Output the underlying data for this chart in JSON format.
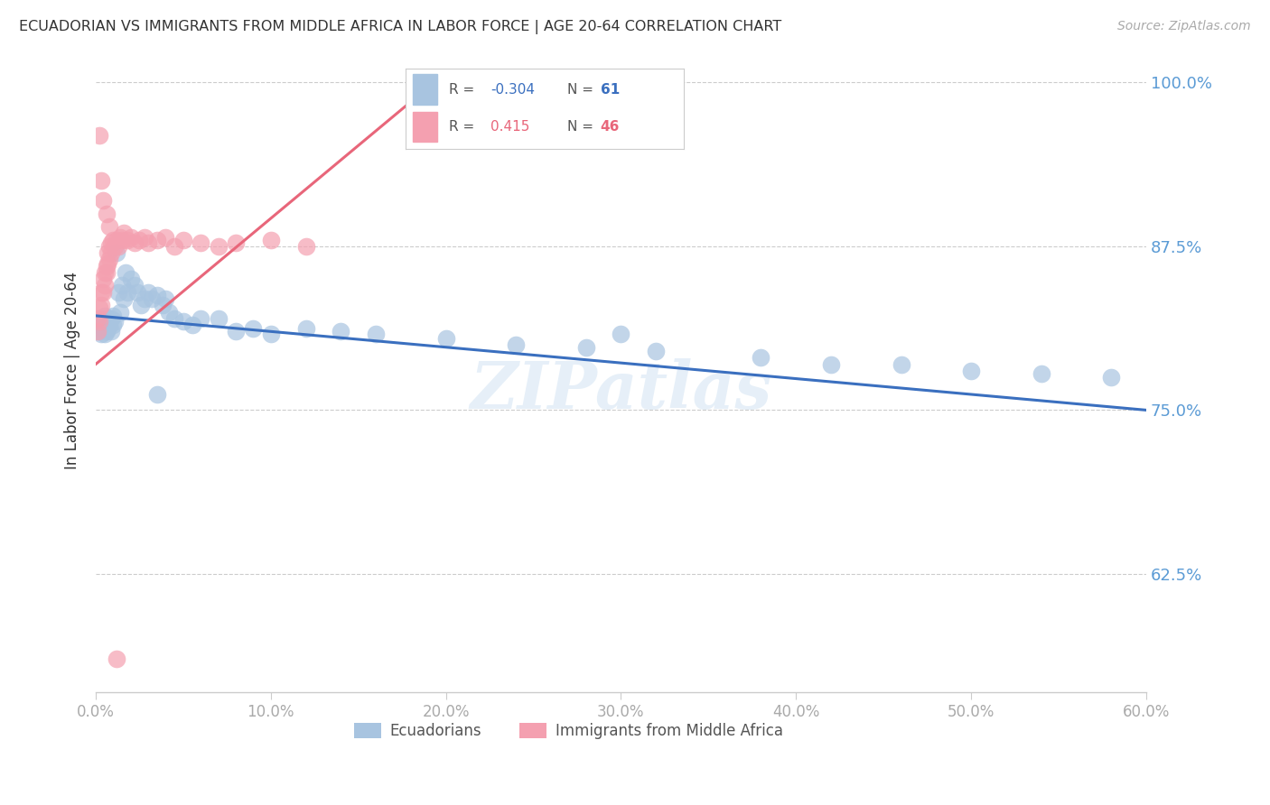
{
  "title": "ECUADORIAN VS IMMIGRANTS FROM MIDDLE AFRICA IN LABOR FORCE | AGE 20-64 CORRELATION CHART",
  "source": "Source: ZipAtlas.com",
  "ylabel": "In Labor Force | Age 20-64",
  "xlim": [
    0.0,
    0.6
  ],
  "ylim": [
    0.535,
    1.025
  ],
  "yticks": [
    0.625,
    0.75,
    0.875,
    1.0
  ],
  "ytick_labels": [
    "62.5%",
    "75.0%",
    "87.5%",
    "100.0%"
  ],
  "xticks": [
    0.0,
    0.1,
    0.2,
    0.3,
    0.4,
    0.5,
    0.6
  ],
  "xtick_labels": [
    "0.0%",
    "10.0%",
    "20.0%",
    "30.0%",
    "40.0%",
    "50.0%",
    "60.0%"
  ],
  "blue_R": -0.304,
  "blue_N": 61,
  "pink_R": 0.415,
  "pink_N": 46,
  "blue_color": "#a8c4e0",
  "pink_color": "#f4a0b0",
  "blue_line_color": "#3a6fbf",
  "pink_line_color": "#e8667a",
  "legend_label_blue": "Ecuadorians",
  "legend_label_pink": "Immigrants from Middle Africa",
  "watermark": "ZIPatlas",
  "blue_dots_x": [
    0.001,
    0.002,
    0.002,
    0.003,
    0.003,
    0.004,
    0.004,
    0.005,
    0.005,
    0.006,
    0.006,
    0.007,
    0.007,
    0.008,
    0.008,
    0.009,
    0.009,
    0.01,
    0.01,
    0.011,
    0.012,
    0.013,
    0.014,
    0.015,
    0.016,
    0.017,
    0.018,
    0.02,
    0.022,
    0.024,
    0.026,
    0.028,
    0.03,
    0.032,
    0.035,
    0.038,
    0.04,
    0.042,
    0.045,
    0.05,
    0.055,
    0.06,
    0.07,
    0.08,
    0.09,
    0.1,
    0.12,
    0.14,
    0.16,
    0.2,
    0.24,
    0.28,
    0.32,
    0.38,
    0.42,
    0.46,
    0.5,
    0.54,
    0.58,
    0.035,
    0.3
  ],
  "blue_dots_y": [
    0.82,
    0.815,
    0.81,
    0.82,
    0.808,
    0.818,
    0.812,
    0.822,
    0.808,
    0.815,
    0.81,
    0.82,
    0.812,
    0.818,
    0.815,
    0.82,
    0.81,
    0.822,
    0.815,
    0.818,
    0.87,
    0.84,
    0.825,
    0.845,
    0.835,
    0.855,
    0.84,
    0.85,
    0.845,
    0.84,
    0.83,
    0.835,
    0.84,
    0.835,
    0.838,
    0.83,
    0.835,
    0.825,
    0.82,
    0.818,
    0.815,
    0.82,
    0.82,
    0.81,
    0.812,
    0.808,
    0.812,
    0.81,
    0.808,
    0.805,
    0.8,
    0.798,
    0.795,
    0.79,
    0.785,
    0.785,
    0.78,
    0.778,
    0.775,
    0.762,
    0.808
  ],
  "pink_dots_x": [
    0.001,
    0.001,
    0.002,
    0.002,
    0.003,
    0.003,
    0.004,
    0.004,
    0.005,
    0.005,
    0.006,
    0.006,
    0.007,
    0.007,
    0.008,
    0.008,
    0.009,
    0.009,
    0.01,
    0.011,
    0.012,
    0.013,
    0.014,
    0.015,
    0.016,
    0.018,
    0.02,
    0.022,
    0.025,
    0.028,
    0.03,
    0.035,
    0.04,
    0.045,
    0.05,
    0.06,
    0.07,
    0.08,
    0.1,
    0.12,
    0.002,
    0.003,
    0.004,
    0.006,
    0.008,
    0.012
  ],
  "pink_dots_y": [
    0.81,
    0.82,
    0.818,
    0.828,
    0.83,
    0.84,
    0.84,
    0.85,
    0.845,
    0.855,
    0.855,
    0.86,
    0.862,
    0.87,
    0.865,
    0.875,
    0.87,
    0.878,
    0.88,
    0.875,
    0.88,
    0.875,
    0.882,
    0.88,
    0.885,
    0.88,
    0.882,
    0.878,
    0.88,
    0.882,
    0.878,
    0.88,
    0.882,
    0.875,
    0.88,
    0.878,
    0.875,
    0.878,
    0.88,
    0.875,
    0.96,
    0.925,
    0.91,
    0.9,
    0.89,
    0.56
  ],
  "blue_line_x": [
    0.0,
    0.6
  ],
  "blue_line_y": [
    0.822,
    0.75
  ],
  "pink_line_x": [
    0.0,
    0.195
  ],
  "pink_line_y": [
    0.785,
    1.002
  ]
}
